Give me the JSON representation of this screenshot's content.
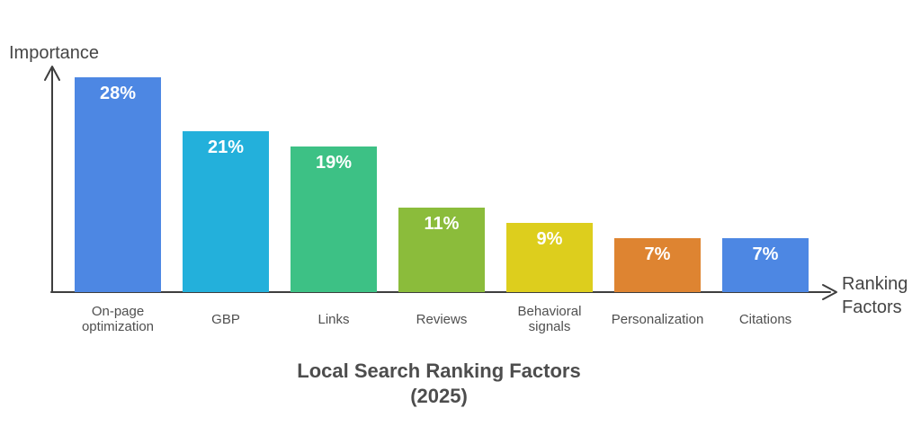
{
  "chart": {
    "title_line1": "Local Search Ranking Factors",
    "title_line2": "(2025)",
    "y_axis_label": "Importance",
    "x_axis_label": "Ranking Factors"
  },
  "chart_data": {
    "type": "bar",
    "title": "Local Search Ranking Factors (2025)",
    "xlabel": "Ranking Factors",
    "ylabel": "Importance",
    "categories": [
      "On-page optimization",
      "GBP",
      "Links",
      "Reviews",
      "Behavioral signals",
      "Personalization",
      "Citations"
    ],
    "values": [
      28,
      21,
      19,
      11,
      9,
      7,
      7
    ],
    "value_labels": [
      "28%",
      "21%",
      "19%",
      "11%",
      "9%",
      "7%",
      "7%"
    ],
    "bar_colors": [
      "#4d87e3",
      "#23b0db",
      "#3dc185",
      "#8bbc3b",
      "#ddce1d",
      "#de8431",
      "#4d87e3"
    ],
    "ylim": [
      0,
      30
    ],
    "grid": false,
    "legend": false,
    "axis_color": "#3e3e3e",
    "value_label_color": "#ffffff"
  }
}
